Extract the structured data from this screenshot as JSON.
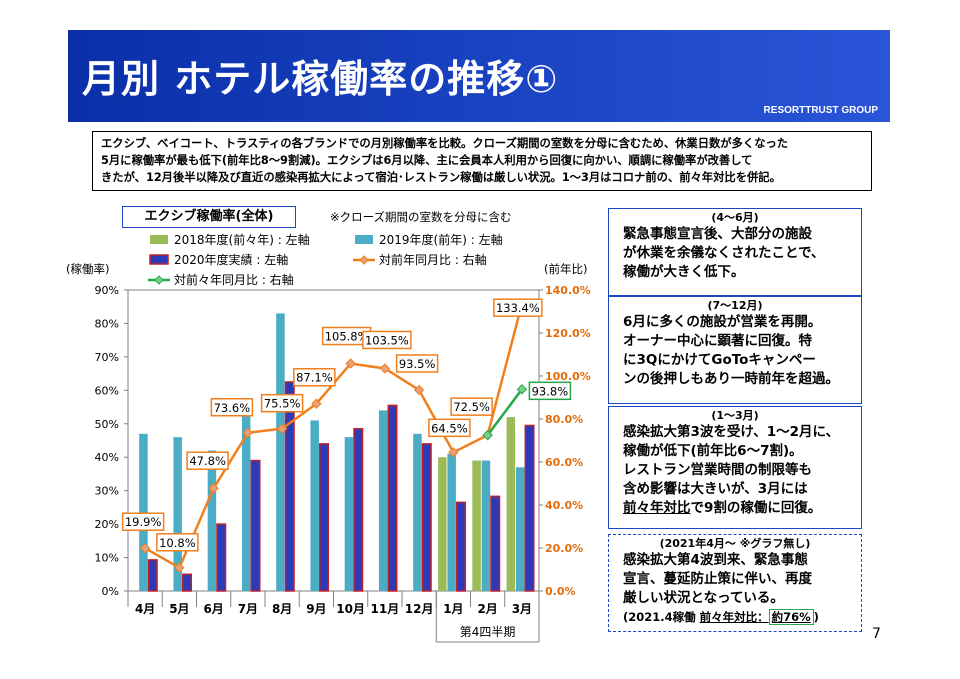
{
  "header": {
    "title": "月別 ホテル稼働率の推移①",
    "company": "RESORTTRUST GROUP"
  },
  "summary": {
    "lines": [
      "エクシブ、ベイコート、トラスティの各ブランドでの月別稼働率を比較。クローズ期間の室数を分母に含むため、休業日数が多くなった",
      "5月に稼働率が最も低下(前年比8～9割減)。エクシブは6月以降、主に会員本人利用から回復に向かい、順調に稼働率が改善して",
      "きたが、12月後半以降及び直近の感染再拡大によって宿泊･レストラン稼働は厳しい状況。1～3月はコロナ前の、前々年対比を併記。"
    ]
  },
  "chart_title": "エクシブ稼働率(全体)",
  "chart_note": "※クローズ期間の室数を分母に含む",
  "quarter_label": "第4四半期",
  "chart_data": {
    "type": "bar",
    "categories": [
      "4月",
      "5月",
      "6月",
      "7月",
      "8月",
      "9月",
      "10月",
      "11月",
      "12月",
      "1月",
      "2月",
      "3月"
    ],
    "ylabel": "(稼働率)",
    "y2label": "(前年比)",
    "ylim": [
      0,
      90
    ],
    "y2lim": [
      0,
      140
    ],
    "yticks": [
      "0%",
      "10%",
      "20%",
      "30%",
      "40%",
      "50%",
      "60%",
      "70%",
      "80%",
      "90%"
    ],
    "y2ticks": [
      "0.0%",
      "20.0%",
      "40.0%",
      "60.0%",
      "80.0%",
      "100.0%",
      "120.0%",
      "140.0%"
    ],
    "grid": false,
    "legend_position": "top",
    "series": [
      {
        "name": "2018年度(前々年) : 左軸",
        "kind": "bar",
        "axis": "left",
        "color": "#9bbb59",
        "values": [
          null,
          null,
          null,
          null,
          null,
          null,
          null,
          null,
          null,
          40,
          39,
          52
        ]
      },
      {
        "name": "2019年度(前年) : 左軸",
        "kind": "bar",
        "axis": "left",
        "color": "#4bacc6",
        "values": [
          47,
          46,
          42,
          53,
          83,
          51,
          46,
          54,
          47,
          41,
          39,
          37
        ]
      },
      {
        "name": "2020年度実績 : 左軸",
        "kind": "bar",
        "axis": "left",
        "color": "#2d3ab8",
        "values": [
          9.3,
          5,
          20,
          39,
          62.5,
          44,
          48.5,
          55.5,
          44,
          26.5,
          28.3,
          49.5
        ]
      },
      {
        "name": "対前年同月比 : 右軸",
        "kind": "line",
        "axis": "right",
        "color": "#f07f1c",
        "values": [
          19.9,
          10.8,
          47.8,
          73.6,
          75.5,
          87.1,
          105.8,
          103.5,
          93.5,
          64.5,
          72.5,
          133.4
        ],
        "labels": [
          "19.9%",
          "10.8%",
          "47.8%",
          "73.6%",
          "75.5%",
          "87.1%",
          "105.8%",
          "103.5%",
          "93.5%",
          "64.5%",
          "72.5%",
          "133.4%"
        ]
      },
      {
        "name": "対前々年同月比 : 右軸",
        "kind": "line",
        "axis": "right",
        "color": "#22a84a",
        "values": [
          null,
          null,
          null,
          null,
          null,
          null,
          null,
          null,
          null,
          null,
          72.5,
          93.8
        ],
        "labels": [
          null,
          null,
          null,
          null,
          null,
          null,
          null,
          null,
          null,
          null,
          null,
          "93.8%"
        ]
      }
    ]
  },
  "boxes": [
    {
      "head": "(4～6月)",
      "lines": [
        "緊急事態宣言後、大部分の施設",
        "が休業を余儀なくされたことで、",
        "稼働が大きく低下。"
      ]
    },
    {
      "head": "(7～12月)",
      "lines": [
        "6月に多くの施設が営業を再開。",
        "オーナー中心に顕著に回復。特",
        "に3QにかけてGoToキャンペー",
        "ンの後押しもあり一時前年を超過。"
      ]
    },
    {
      "head": "(1～3月)",
      "lines": [
        "感染拡大第3波を受け、1～2月に、",
        "稼働が低下(前年比6～7割)。",
        "レストラン営業時間の制限等も",
        "含め影響は大きいが、3月には"
      ],
      "last_under": "前々年対比",
      "last_rest": "で9割の稼働に回復。"
    },
    {
      "head": "(2021年4月～ ※グラフ無し)",
      "lines": [
        "感染拡大第4波到来、緊急事態",
        "宣言、蔓延防止策に伴い、再度",
        "厳しい状況となっている。"
      ],
      "note_prefix": "(2021.4稼働 ",
      "note_under": "前々年対比：",
      "note_value": "約76%",
      "note_suffix": ")"
    }
  ],
  "page_number": "7"
}
